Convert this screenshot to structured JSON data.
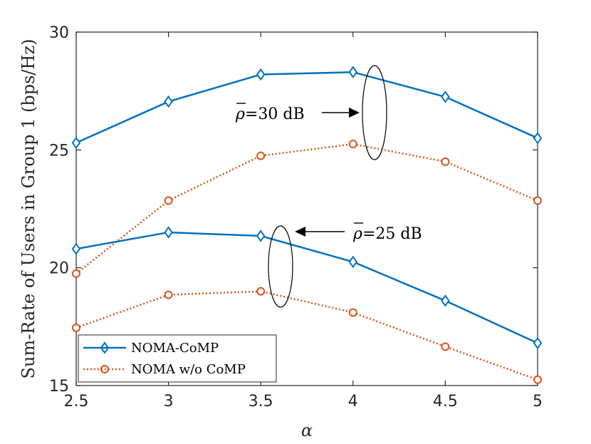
{
  "chart_data": {
    "type": "line",
    "xlabel": "α",
    "ylabel": "Sum-Rate of Users in Group 1 (bps/Hz)",
    "xlim": [
      2.5,
      5
    ],
    "ylim": [
      15,
      30
    ],
    "x": [
      2.5,
      3,
      3.5,
      4,
      4.5,
      5
    ],
    "x_tick_labels": [
      "2.5",
      "3",
      "3.5",
      "4",
      "4.5",
      "5"
    ],
    "y_ticks": [
      15,
      20,
      25,
      30
    ],
    "y_tick_labels": [
      "15",
      "20",
      "25",
      "30"
    ],
    "grid": false,
    "legend_position": "bottom-left",
    "series": [
      {
        "name": "NOMA-CoMP",
        "group": "ρ̄=30 dB",
        "color": "#0072BD",
        "marker": "diamond",
        "line_style": "solid",
        "values": [
          25.3,
          27.05,
          28.2,
          28.3,
          27.25,
          25.5
        ]
      },
      {
        "name": "NOMA w/o CoMP",
        "group": "ρ̄=30 dB",
        "color": "#D95319",
        "marker": "circle",
        "line_style": "dotted",
        "values": [
          19.75,
          22.85,
          24.75,
          25.25,
          24.5,
          22.85
        ]
      },
      {
        "name": "NOMA-CoMP",
        "group": "ρ̄=25 dB",
        "color": "#0072BD",
        "marker": "diamond",
        "line_style": "solid",
        "values": [
          20.8,
          21.5,
          21.35,
          20.25,
          18.6,
          16.8
        ]
      },
      {
        "name": "NOMA w/o CoMP",
        "group": "ρ̄=25 dB",
        "color": "#D95319",
        "marker": "circle",
        "line_style": "dotted",
        "values": [
          17.45,
          18.85,
          19.0,
          18.1,
          16.65,
          15.25
        ]
      }
    ],
    "legend": [
      {
        "label": "NOMA-CoMP",
        "color": "#0072BD",
        "marker": "diamond",
        "line_style": "solid"
      },
      {
        "label": "NOMA w/o CoMP",
        "color": "#D95319",
        "marker": "circle",
        "line_style": "dotted"
      }
    ],
    "annotations": [
      {
        "rho": "ρ",
        "text": "=30 dB",
        "target": {
          "x": 4.1,
          "y": 26.7
        }
      },
      {
        "rho": "ρ",
        "text": "=25 dB",
        "target": {
          "x": 3.6,
          "y": 20.4
        }
      }
    ]
  }
}
